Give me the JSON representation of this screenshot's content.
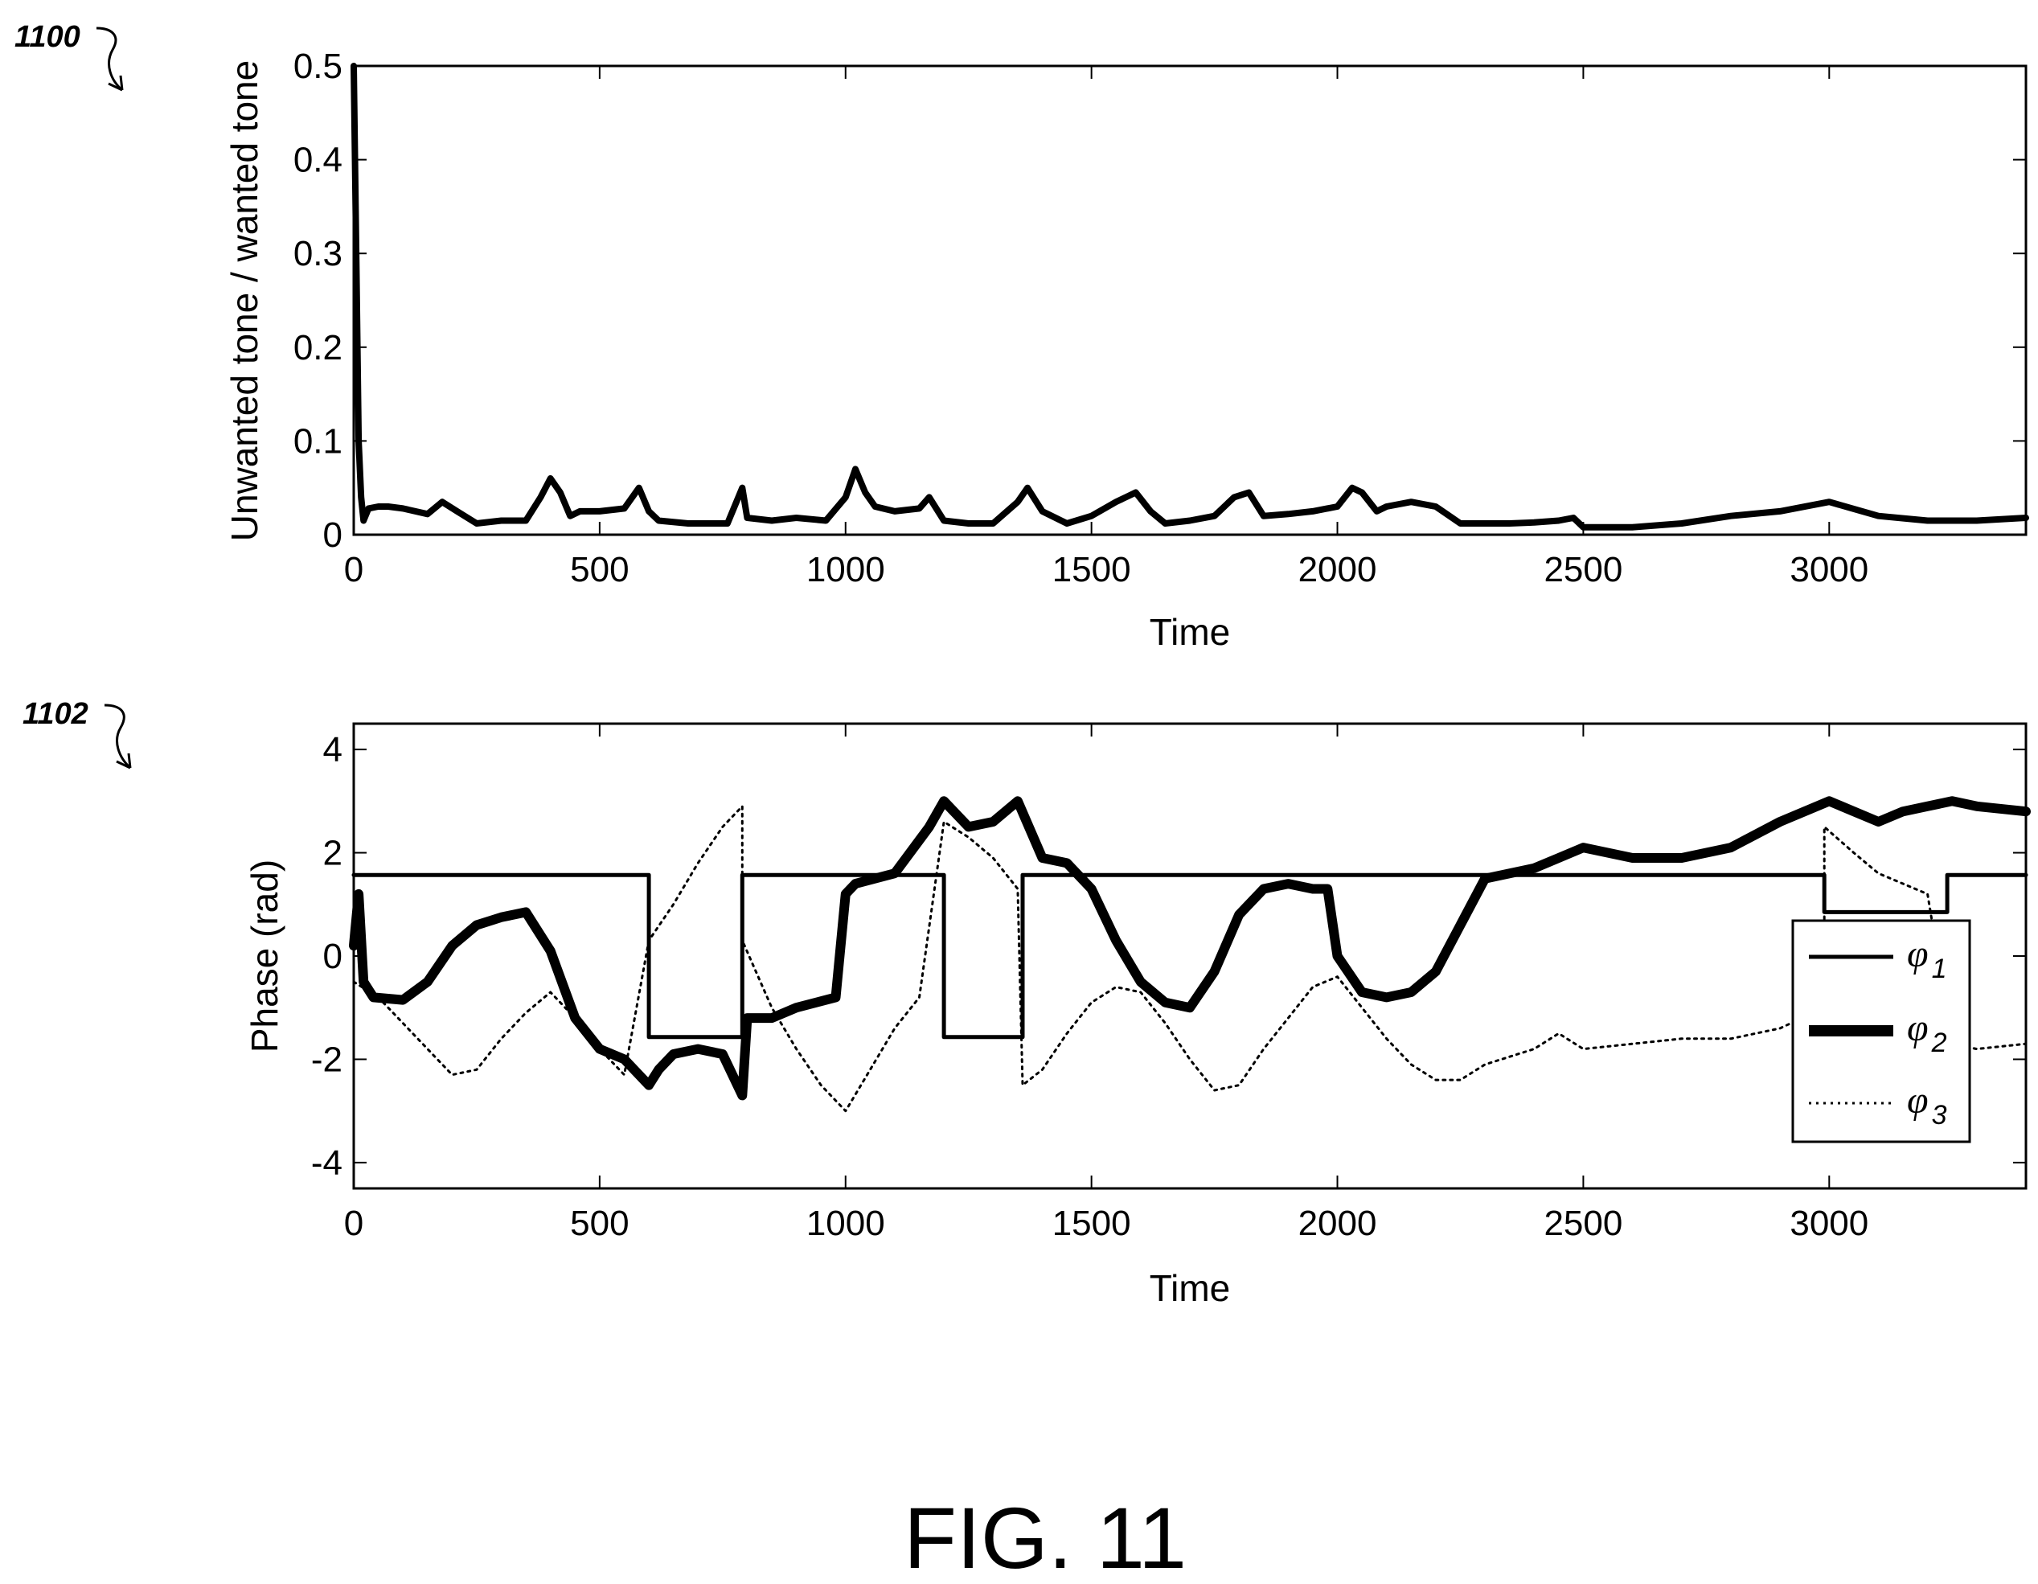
{
  "figure_label": "FIG. 11",
  "ref_top": "1100",
  "ref_bottom": "1102",
  "colors": {
    "line": "#000000",
    "background": "#ffffff"
  },
  "chart_data": [
    {
      "type": "line",
      "title": "",
      "xlabel": "Time",
      "ylabel": "Unwanted tone / wanted tone",
      "xlim": [
        0,
        3400
      ],
      "ylim": [
        0,
        0.5
      ],
      "xticks": [
        0,
        500,
        1000,
        1500,
        2000,
        2500,
        3000
      ],
      "yticks": [
        0,
        0.1,
        0.2,
        0.3,
        0.4,
        0.5
      ],
      "grid": false,
      "series": [
        {
          "x": [
            0,
            5,
            10,
            15,
            20,
            30,
            50,
            70,
            100,
            150,
            180,
            210,
            250,
            300,
            350,
            380,
            400,
            420,
            440,
            460,
            500,
            550,
            580,
            600,
            620,
            680,
            720,
            760,
            790,
            800,
            850,
            900,
            960,
            1000,
            1020,
            1040,
            1060,
            1100,
            1150,
            1170,
            1200,
            1250,
            1300,
            1350,
            1370,
            1400,
            1450,
            1500,
            1550,
            1590,
            1620,
            1650,
            1700,
            1750,
            1790,
            1820,
            1850,
            1900,
            1950,
            2000,
            2030,
            2050,
            2080,
            2100,
            2150,
            2200,
            2250,
            2300,
            2350,
            2400,
            2450,
            2480,
            2500,
            2600,
            2700,
            2800,
            2900,
            3000,
            3100,
            3200,
            3300,
            3400
          ],
          "y": [
            0.5,
            0.3,
            0.1,
            0.04,
            0.015,
            0.028,
            0.03,
            0.03,
            0.028,
            0.022,
            0.035,
            0.025,
            0.012,
            0.015,
            0.015,
            0.04,
            0.06,
            0.045,
            0.02,
            0.025,
            0.025,
            0.028,
            0.05,
            0.025,
            0.015,
            0.012,
            0.012,
            0.012,
            0.05,
            0.018,
            0.015,
            0.018,
            0.015,
            0.04,
            0.07,
            0.045,
            0.03,
            0.025,
            0.028,
            0.04,
            0.015,
            0.012,
            0.012,
            0.035,
            0.05,
            0.025,
            0.012,
            0.02,
            0.035,
            0.045,
            0.025,
            0.012,
            0.015,
            0.02,
            0.04,
            0.045,
            0.02,
            0.022,
            0.025,
            0.03,
            0.05,
            0.045,
            0.025,
            0.03,
            0.035,
            0.03,
            0.012,
            0.012,
            0.012,
            0.013,
            0.015,
            0.018,
            0.008,
            0.008,
            0.012,
            0.02,
            0.025,
            0.035,
            0.02,
            0.015,
            0.015,
            0.018
          ]
        }
      ]
    },
    {
      "type": "line",
      "title": "",
      "xlabel": "Time",
      "ylabel": "Phase (rad)",
      "xlim": [
        0,
        3400
      ],
      "ylim": [
        -4.5,
        4.5
      ],
      "xticks": [
        0,
        500,
        1000,
        1500,
        2000,
        2500,
        3000
      ],
      "yticks": [
        -4,
        -2,
        0,
        2,
        4
      ],
      "grid": false,
      "legend": {
        "position": "right",
        "entries": [
          "φ1",
          "φ2",
          "φ3"
        ]
      },
      "series": [
        {
          "name": "φ1",
          "x": [
            0,
            600,
            600,
            790,
            790,
            1200,
            1200,
            1360,
            1360,
            2990,
            2990,
            3240,
            3240,
            3400
          ],
          "y": [
            1.57,
            1.57,
            -1.57,
            -1.57,
            1.57,
            1.57,
            -1.57,
            -1.57,
            1.57,
            1.57,
            0.85,
            0.85,
            1.57,
            1.57
          ]
        },
        {
          "name": "φ2",
          "x": [
            0,
            10,
            20,
            40,
            100,
            150,
            200,
            250,
            300,
            350,
            400,
            450,
            500,
            550,
            600,
            620,
            650,
            700,
            750,
            790,
            800,
            850,
            900,
            980,
            1000,
            1020,
            1100,
            1170,
            1200,
            1250,
            1300,
            1350,
            1400,
            1450,
            1500,
            1550,
            1600,
            1650,
            1700,
            1750,
            1800,
            1850,
            1900,
            1950,
            1980,
            2000,
            2050,
            2100,
            2150,
            2200,
            2250,
            2300,
            2400,
            2450,
            2500,
            2600,
            2700,
            2800,
            2900,
            3000,
            3050,
            3100,
            3150,
            3200,
            3250,
            3300,
            3400
          ],
          "y": [
            0.2,
            1.2,
            -0.5,
            -0.8,
            -0.85,
            -0.5,
            0.2,
            0.6,
            0.75,
            0.85,
            0.1,
            -1.2,
            -1.8,
            -2.0,
            -2.5,
            -2.2,
            -1.9,
            -1.8,
            -1.9,
            -2.7,
            -1.2,
            -1.2,
            -1.0,
            -0.8,
            1.2,
            1.4,
            1.6,
            2.5,
            3.0,
            2.5,
            2.6,
            3.0,
            1.9,
            1.8,
            1.3,
            0.3,
            -0.5,
            -0.9,
            -1.0,
            -0.3,
            0.8,
            1.3,
            1.4,
            1.3,
            1.3,
            0.0,
            -0.7,
            -0.8,
            -0.7,
            -0.3,
            0.6,
            1.5,
            1.7,
            1.9,
            2.1,
            1.9,
            1.9,
            2.1,
            2.6,
            3.0,
            2.8,
            2.6,
            2.8,
            2.9,
            3.0,
            2.9,
            2.8
          ]
        },
        {
          "name": "φ3",
          "x": [
            0,
            50,
            100,
            150,
            200,
            250,
            300,
            350,
            400,
            450,
            500,
            550,
            600,
            650,
            700,
            750,
            790,
            790,
            850,
            900,
            950,
            1000,
            1050,
            1100,
            1150,
            1200,
            1250,
            1300,
            1350,
            1360,
            1400,
            1450,
            1500,
            1550,
            1600,
            1650,
            1700,
            1750,
            1800,
            1850,
            1900,
            1950,
            2000,
            2050,
            2100,
            2150,
            2200,
            2250,
            2300,
            2400,
            2450,
            2500,
            2600,
            2700,
            2800,
            2900,
            2990,
            2990,
            3050,
            3100,
            3200,
            3250,
            3300,
            3400
          ],
          "y": [
            -0.5,
            -0.8,
            -1.3,
            -1.8,
            -2.3,
            -2.2,
            -1.6,
            -1.1,
            -0.7,
            -1.2,
            -1.8,
            -2.3,
            0.3,
            1.0,
            1.8,
            2.5,
            2.9,
            0.3,
            -1.0,
            -1.8,
            -2.5,
            -3.0,
            -2.2,
            -1.4,
            -0.8,
            2.6,
            2.3,
            1.9,
            1.3,
            -2.5,
            -2.2,
            -1.5,
            -0.9,
            -0.6,
            -0.7,
            -1.3,
            -2.0,
            -2.6,
            -2.5,
            -1.8,
            -1.2,
            -0.6,
            -0.4,
            -1.0,
            -1.6,
            -2.1,
            -2.4,
            -2.4,
            -2.1,
            -1.8,
            -1.5,
            -1.8,
            -1.7,
            -1.6,
            -1.6,
            -1.4,
            -1.0,
            2.5,
            2.0,
            1.6,
            1.2,
            -1.7,
            -1.8,
            -1.7
          ]
        }
      ]
    }
  ]
}
